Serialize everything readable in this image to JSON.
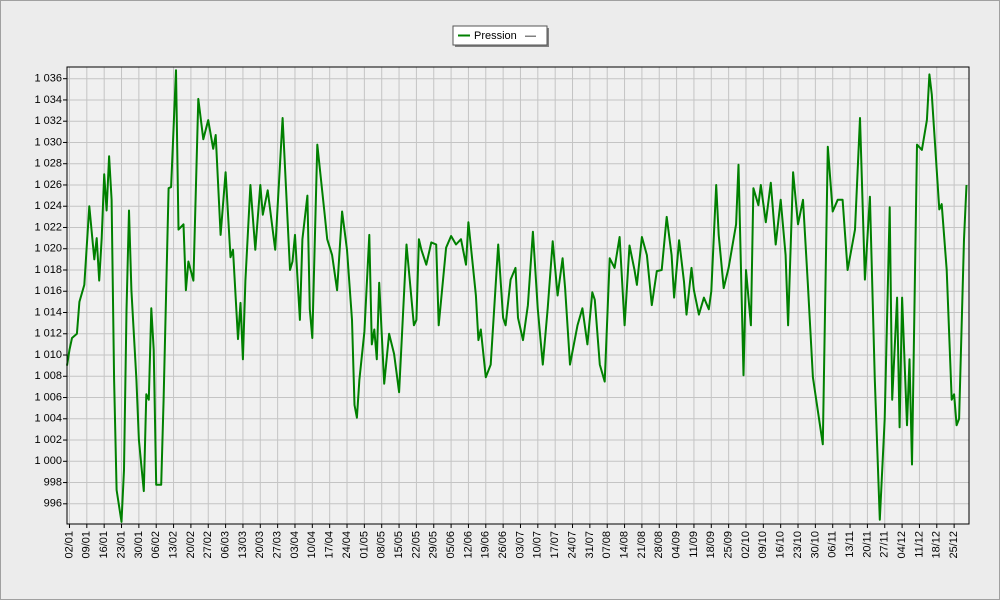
{
  "chart_data": {
    "type": "line",
    "legend_unit": "—",
    "series": [
      {
        "name": "Pression",
        "color": "#008000",
        "x": [
          "01/01",
          "02/01",
          "03/01",
          "05/01",
          "06/01",
          "08/01",
          "10/01",
          "12/01",
          "13/01",
          "14/01",
          "15/01",
          "16/01",
          "17/01",
          "18/01",
          "19/01",
          "20/01",
          "21/01",
          "23/01",
          "24/01",
          "25/01",
          "26/01",
          "27/01",
          "29/01",
          "30/01",
          "01/02",
          "02/02",
          "03/02",
          "04/02",
          "05/02",
          "06/02",
          "08/02",
          "09/02",
          "11/02",
          "12/02",
          "14/02",
          "15/02",
          "17/02",
          "18/02",
          "19/02",
          "21/02",
          "23/02",
          "25/02",
          "27/02",
          "01/03",
          "02/03",
          "04/03",
          "06/03",
          "08/03",
          "09/03",
          "11/03",
          "12/03",
          "13/03",
          "14/03",
          "16/03",
          "18/03",
          "20/03",
          "21/03",
          "23/03",
          "26/03",
          "29/03",
          "01/04",
          "02/04",
          "03/04",
          "05/04",
          "06/04",
          "08/04",
          "09/04",
          "10/04",
          "12/04",
          "15/04",
          "16/04",
          "18/04",
          "20/04",
          "22/04",
          "24/04",
          "26/04",
          "27/04",
          "28/04",
          "29/04",
          "01/05",
          "03/05",
          "04/05",
          "05/05",
          "06/05",
          "07/05",
          "09/05",
          "11/05",
          "13/05",
          "15/05",
          "18/05",
          "21/05",
          "22/05",
          "23/05",
          "24/05",
          "26/05",
          "28/05",
          "30/05",
          "31/05",
          "03/06",
          "05/06",
          "07/06",
          "09/06",
          "11/06",
          "12/06",
          "15/06",
          "16/06",
          "17/06",
          "19/06",
          "21/06",
          "24/06",
          "26/06",
          "27/06",
          "29/06",
          "01/07",
          "02/07",
          "04/07",
          "06/07",
          "08/07",
          "10/07",
          "12/07",
          "14/07",
          "16/07",
          "18/07",
          "20/07",
          "21/07",
          "23/07",
          "26/07",
          "28/07",
          "30/07",
          "01/08",
          "02/08",
          "04/08",
          "06/08",
          "08/08",
          "10/08",
          "12/08",
          "14/08",
          "16/08",
          "18/08",
          "19/08",
          "21/08",
          "23/08",
          "25/08",
          "27/08",
          "29/08",
          "31/08",
          "02/09",
          "03/09",
          "05/09",
          "07/09",
          "08/09",
          "10/09",
          "11/09",
          "13/09",
          "15/09",
          "17/09",
          "18/09",
          "20/09",
          "21/09",
          "23/09",
          "25/09",
          "28/09",
          "29/09",
          "01/10",
          "02/10",
          "04/10",
          "05/10",
          "07/10",
          "08/10",
          "10/10",
          "12/10",
          "14/10",
          "16/10",
          "18/10",
          "19/10",
          "21/10",
          "23/10",
          "25/10",
          "27/10",
          "29/10",
          "02/11",
          "04/11",
          "06/11",
          "08/11",
          "10/11",
          "12/11",
          "15/11",
          "17/11",
          "19/11",
          "21/11",
          "23/11",
          "25/11",
          "27/11",
          "29/11",
          "30/11",
          "02/12",
          "03/12",
          "04/12",
          "06/12",
          "07/12",
          "08/12",
          "10/12",
          "12/12",
          "14/12",
          "15/12",
          "16/12",
          "19/12",
          "20/12",
          "22/12",
          "24/12",
          "25/12",
          "26/12",
          "27/12",
          "29/12",
          "30/12"
        ],
        "values": [
          1009,
          1010.5,
          1011.6,
          1012,
          1015,
          1016.6,
          1024,
          1019,
          1021,
          1017,
          1021,
          1027,
          1023.6,
          1028.7,
          1024.6,
          1007.7,
          997.3,
          994.3,
          999.2,
          1014.2,
          1023.6,
          1016.1,
          1007.7,
          1002,
          997.2,
          1006.3,
          1005.8,
          1014.4,
          1010.5,
          997.8,
          997.8,
          1005.8,
          1025.7,
          1025.8,
          1036.8,
          1021.8,
          1022.3,
          1016.1,
          1018.8,
          1017,
          1034.1,
          1030.3,
          1032.1,
          1029.4,
          1030.7,
          1021.3,
          1027.2,
          1019.2,
          1019.9,
          1011.5,
          1014.9,
          1009.6,
          1017,
          1026,
          1019.9,
          1026,
          1023.2,
          1025.5,
          1019.9,
          1032.3,
          1018,
          1018.8,
          1021.3,
          1013.3,
          1020.9,
          1025,
          1014.3,
          1011.6,
          1029.8,
          1023.2,
          1020.9,
          1019.4,
          1016.1,
          1023.5,
          1019.9,
          1013.3,
          1005.3,
          1004.1,
          1007.7,
          1012.2,
          1021.3,
          1011,
          1012.4,
          1009.6,
          1016.8,
          1007.3,
          1012,
          1010.1,
          1006.5,
          1020.4,
          1012.8,
          1013.3,
          1020.9,
          1019.9,
          1018.5,
          1020.6,
          1020.4,
          1012.8,
          1020.1,
          1021.2,
          1020.4,
          1020.9,
          1018.5,
          1022.5,
          1015.6,
          1011.4,
          1012.4,
          1007.9,
          1009.1,
          1020.4,
          1013.5,
          1012.8,
          1017.1,
          1018.2,
          1013.5,
          1011.4,
          1014.7,
          1021.6,
          1014.3,
          1009.1,
          1014.4,
          1020.7,
          1015.6,
          1019.1,
          1016.3,
          1009.1,
          1012.8,
          1014.4,
          1011,
          1015.9,
          1015.2,
          1009.1,
          1007.5,
          1019.1,
          1018.2,
          1021.1,
          1012.8,
          1020.3,
          1018,
          1016.6,
          1021.1,
          1019.4,
          1014.7,
          1017.9,
          1018,
          1023,
          1019.4,
          1015.4,
          1020.8,
          1016.9,
          1013.8,
          1018.2,
          1016.1,
          1013.8,
          1015.4,
          1014.3,
          1016,
          1026,
          1021.3,
          1016.3,
          1018.2,
          1022.3,
          1027.9,
          1008.1,
          1018,
          1012.8,
          1025.7,
          1024.1,
          1026,
          1022.5,
          1026.2,
          1020.4,
          1024.6,
          1019.4,
          1012.8,
          1027.2,
          1022.3,
          1024.6,
          1016.6,
          1007.9,
          1001.6,
          1029.6,
          1023.5,
          1024.6,
          1024.6,
          1018,
          1021.8,
          1032.3,
          1017.1,
          1024.9,
          1007.7,
          994.5,
          1004,
          1023.9,
          1005.8,
          1015.4,
          1003.2,
          1015.4,
          1003.4,
          1009.6,
          999.7,
          1029.8,
          1029.3,
          1032.1,
          1036.4,
          1034.5,
          1023.7,
          1024.2,
          1018,
          1005.8,
          1006.3,
          1003.4,
          1004,
          1020.9,
          1026
        ]
      }
    ],
    "xlim": [
      "01/01",
      "31/12"
    ],
    "xticks": [
      "02/01",
      "09/01",
      "16/01",
      "23/01",
      "30/01",
      "06/02",
      "13/02",
      "20/02",
      "27/02",
      "06/03",
      "13/03",
      "20/03",
      "27/03",
      "03/04",
      "10/04",
      "17/04",
      "24/04",
      "01/05",
      "08/05",
      "15/05",
      "22/05",
      "29/05",
      "05/06",
      "12/06",
      "19/06",
      "26/06",
      "03/07",
      "10/07",
      "17/07",
      "24/07",
      "31/07",
      "07/08",
      "14/08",
      "21/08",
      "28/08",
      "04/09",
      "11/09",
      "18/09",
      "25/09",
      "02/10",
      "09/10",
      "16/10",
      "23/10",
      "30/10",
      "06/11",
      "13/11",
      "20/11",
      "27/11",
      "04/12",
      "11/12",
      "18/12",
      "25/12"
    ],
    "ylim": [
      994.1,
      1037.1
    ],
    "yticks": [
      996,
      998,
      {
        "value": 1000,
        "label": "1 000"
      },
      {
        "value": 1002,
        "label": "1 002"
      },
      {
        "value": 1004,
        "label": "1 004"
      },
      {
        "value": 1006,
        "label": "1 006"
      },
      {
        "value": 1008,
        "label": "1 008"
      },
      {
        "value": 1010,
        "label": "1 010"
      },
      {
        "value": 1012,
        "label": "1 012"
      },
      {
        "value": 1014,
        "label": "1 014"
      },
      {
        "value": 1016,
        "label": "1 016"
      },
      {
        "value": 1018,
        "label": "1 018"
      },
      {
        "value": 1020,
        "label": "1 020"
      },
      {
        "value": 1022,
        "label": "1 022"
      },
      {
        "value": 1024,
        "label": "1 024"
      },
      {
        "value": 1026,
        "label": "1 026"
      },
      {
        "value": 1028,
        "label": "1 028"
      },
      {
        "value": 1030,
        "label": "1 030"
      },
      {
        "value": 1032,
        "label": "1 032"
      },
      {
        "value": 1034,
        "label": "1 034"
      },
      {
        "value": 1036,
        "label": "1 036"
      }
    ],
    "grid": true
  }
}
